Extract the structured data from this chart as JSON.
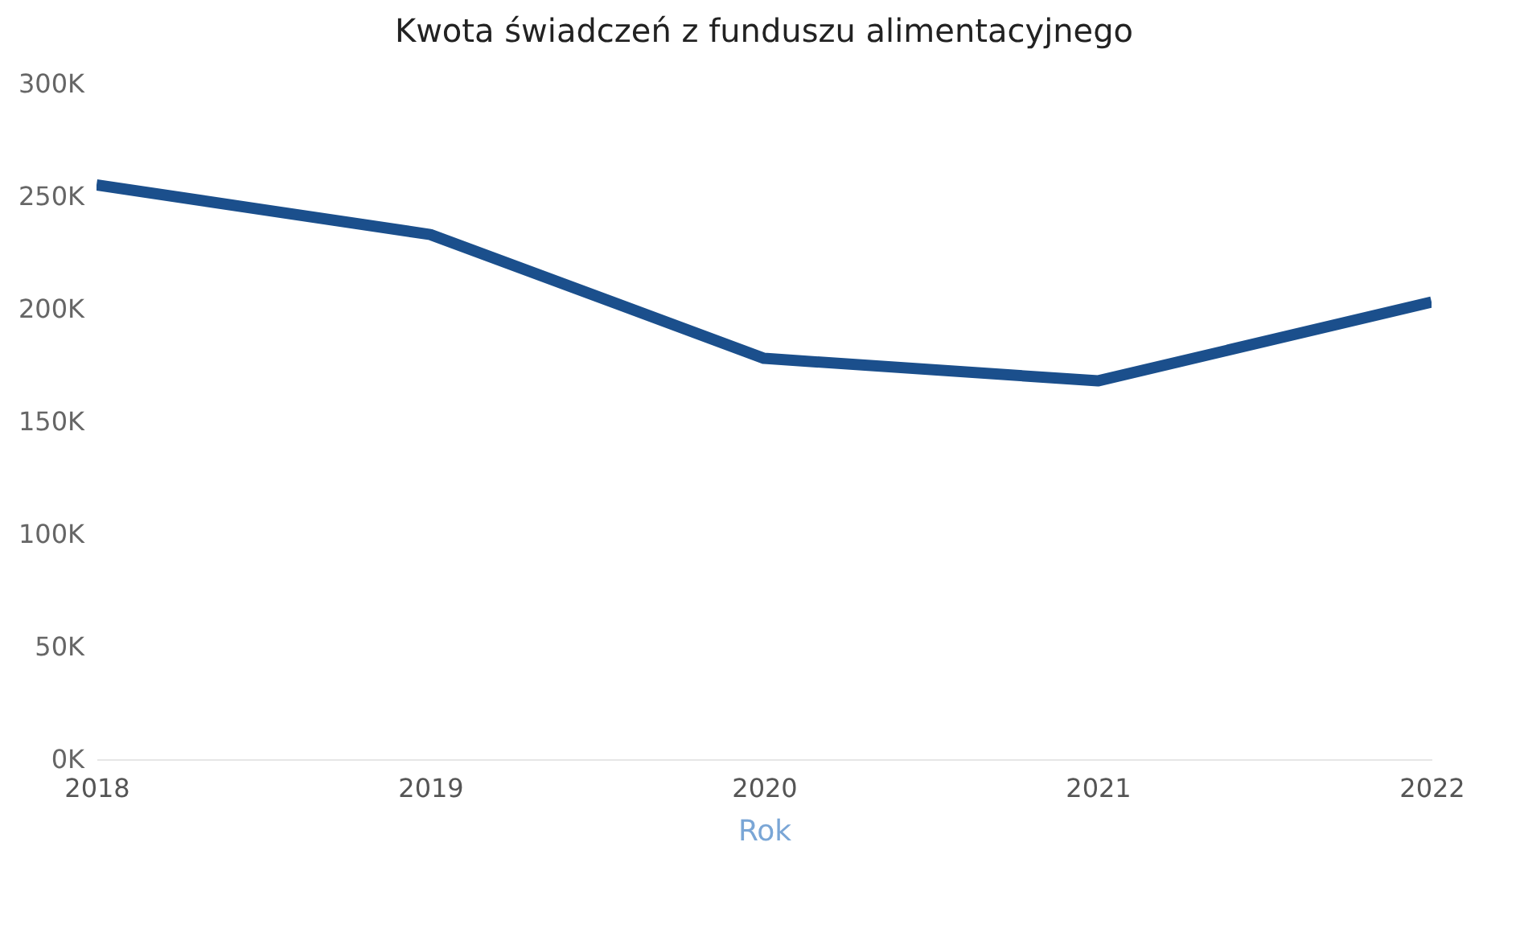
{
  "chart_data": {
    "type": "line",
    "title": "Kwota świadczeń z funduszu alimentacyjnego",
    "xlabel": "Rok",
    "categories": [
      "2018",
      "2019",
      "2020",
      "2021",
      "2022"
    ],
    "series": [
      {
        "color": "#1b4f8c",
        "values": [
          255000,
          233000,
          178000,
          168000,
          203000
        ]
      }
    ],
    "ylim": [
      0,
      300000
    ],
    "yticks": [
      {
        "value": 0,
        "label": "0K"
      },
      {
        "value": 50000,
        "label": "50K"
      },
      {
        "value": 100000,
        "label": "100K"
      },
      {
        "value": 150000,
        "label": "150K"
      },
      {
        "value": 200000,
        "label": "200K"
      },
      {
        "value": 250000,
        "label": "250K"
      },
      {
        "value": 300000,
        "label": "300K"
      }
    ],
    "grid": false,
    "marker": "none",
    "line_style": "solid"
  }
}
